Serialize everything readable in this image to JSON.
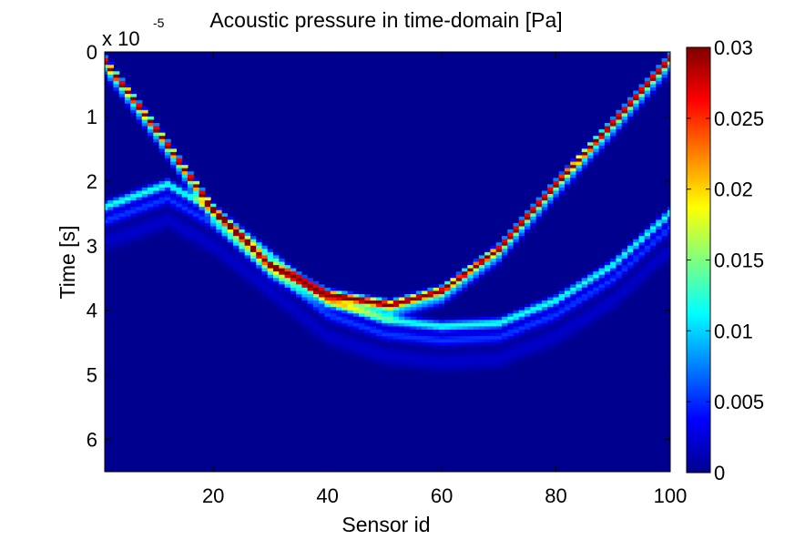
{
  "chart_data": {
    "type": "heatmap",
    "title": "Acoustic pressure in time-domain [Pa]",
    "xlabel": "Sensor id",
    "ylabel": "Time [s]",
    "y_exponent_label": "x 10",
    "y_exponent": "-5",
    "xlim": [
      1,
      100
    ],
    "ylim": [
      0,
      6.5
    ],
    "y_reversed": true,
    "x_ticks": [
      "20",
      "40",
      "60",
      "80",
      "100"
    ],
    "y_ticks": [
      "0",
      "1",
      "2",
      "3",
      "4",
      "5",
      "6"
    ],
    "colorbar": {
      "colormap": "jet",
      "min": 0,
      "max": 0.03,
      "ticks": [
        "0",
        "0.005",
        "0.01",
        "0.015",
        "0.02",
        "0.025",
        "0.03"
      ]
    },
    "features": [
      {
        "description": "direct arrival wavefront (strongest)",
        "peak_value": 0.03,
        "time_at_sensor": [
          [
            1,
            0.15
          ],
          [
            10,
            1.2
          ],
          [
            20,
            2.45
          ],
          [
            30,
            3.3
          ],
          [
            40,
            3.75
          ],
          [
            51,
            3.92
          ],
          [
            60,
            3.7
          ],
          [
            70,
            3.05
          ],
          [
            80,
            2.05
          ],
          [
            90,
            1.1
          ],
          [
            100,
            0.1
          ]
        ]
      },
      {
        "description": "reflected arrival (weaker)",
        "peak_value": 0.012,
        "time_at_sensor": [
          [
            1,
            2.4
          ],
          [
            12,
            2.05
          ],
          [
            20,
            2.45
          ],
          [
            30,
            3.15
          ],
          [
            40,
            3.85
          ],
          [
            50,
            4.15
          ],
          [
            60,
            4.25
          ],
          [
            70,
            4.2
          ],
          [
            80,
            3.85
          ],
          [
            90,
            3.3
          ],
          [
            100,
            2.5
          ]
        ]
      }
    ],
    "background_value": 0,
    "grid": false
  }
}
